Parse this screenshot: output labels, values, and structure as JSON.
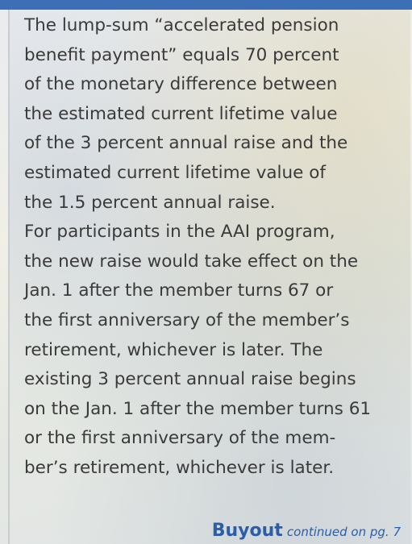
{
  "article": {
    "paragraphs": [
      {
        "lines": [
          "The lump-sum “accelerated pension",
          "benefit payment” equals 70 percent",
          "of the monetary difference between",
          "the estimated current lifetime value",
          "of the 3 percent annual raise and the",
          "estimated current lifetime value of",
          "the 1.5 percent annual raise."
        ]
      },
      {
        "lines": [
          "For participants in the AAI program,",
          "the new raise would take effect on the",
          "Jan. 1 after the member turns 67 or",
          "the first anniversary of the member’s",
          "retirement, whichever is later. The",
          "existing 3 percent annual raise begins",
          "on the Jan. 1 after the member turns 61",
          "or the first anniversary of the mem-",
          "ber’s retirement, whichever is later."
        ]
      }
    ],
    "footer": {
      "keyword": "Buyout",
      "note": "continued on pg. 7"
    }
  }
}
